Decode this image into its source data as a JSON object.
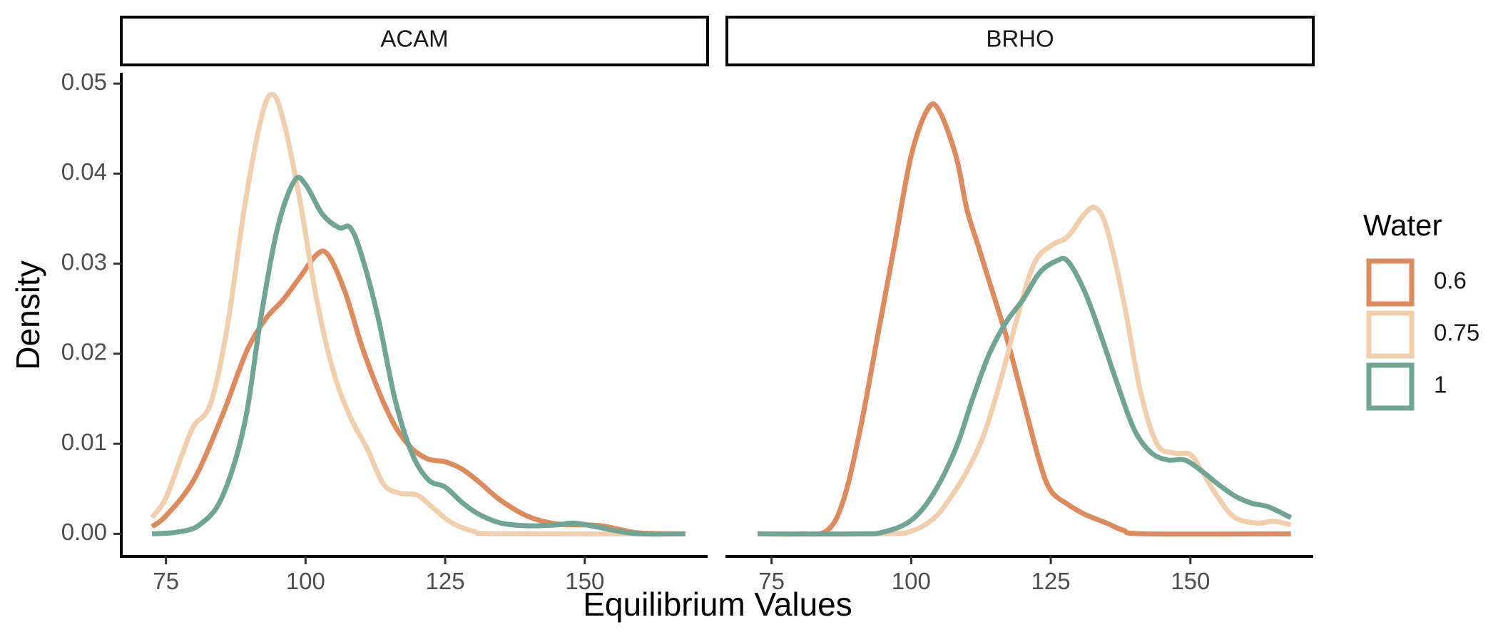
{
  "chart_data": {
    "type": "line",
    "chart_kind": "density",
    "xlabel": "Equilibrium Values",
    "ylabel": "Density",
    "xlim": [
      67,
      172
    ],
    "ylim": [
      -0.0025,
      0.0512
    ],
    "x_ticks": [
      75,
      100,
      125,
      150
    ],
    "y_ticks": [
      0.0,
      0.01,
      0.02,
      0.03,
      0.04,
      0.05
    ],
    "y_tick_labels": [
      "0.00",
      "0.01",
      "0.02",
      "0.03",
      "0.04",
      "0.05"
    ],
    "grid": false,
    "legend": {
      "title": "Water",
      "position": "right",
      "items": [
        {
          "label": "0.6",
          "color": "#E0895A"
        },
        {
          "label": "0.75",
          "color": "#F2CFAA"
        },
        {
          "label": "1",
          "color": "#6FA595"
        }
      ]
    },
    "panels": [
      {
        "strip": "ACAM",
        "series": [
          {
            "name": "0.6",
            "color": "#E0895A",
            "points": [
              [
                72.5,
                0.0008
              ],
              [
                75,
                0.002
              ],
              [
                80,
                0.006
              ],
              [
                85,
                0.013
              ],
              [
                88,
                0.018
              ],
              [
                90,
                0.021
              ],
              [
                93,
                0.024
              ],
              [
                96,
                0.026
              ],
              [
                99,
                0.0285
              ],
              [
                102,
                0.031
              ],
              [
                104,
                0.031
              ],
              [
                107,
                0.027
              ],
              [
                110,
                0.021
              ],
              [
                113,
                0.016
              ],
              [
                116,
                0.012
              ],
              [
                119,
                0.0095
              ],
              [
                122,
                0.0083
              ],
              [
                125,
                0.008
              ],
              [
                128,
                0.0072
              ],
              [
                131,
                0.0058
              ],
              [
                135,
                0.0037
              ],
              [
                140,
                0.0019
              ],
              [
                145,
                0.0011
              ],
              [
                150,
                0.001
              ],
              [
                153,
                0.0009
              ],
              [
                157,
                0.0004
              ],
              [
                160,
                0.0001
              ],
              [
                168,
                0.0
              ]
            ]
          },
          {
            "name": "0.75",
            "color": "#F2CFAA",
            "points": [
              [
                72.5,
                0.0018
              ],
              [
                75,
                0.004
              ],
              [
                78,
                0.009
              ],
              [
                80,
                0.012
              ],
              [
                83,
                0.0145
              ],
              [
                86,
                0.023
              ],
              [
                89,
                0.036
              ],
              [
                92,
                0.046
              ],
              [
                94,
                0.0488
              ],
              [
                96,
                0.046
              ],
              [
                99,
                0.037
              ],
              [
                102,
                0.026
              ],
              [
                105,
                0.018
              ],
              [
                108,
                0.013
              ],
              [
                111,
                0.0095
              ],
              [
                114,
                0.0055
              ],
              [
                117,
                0.0045
              ],
              [
                120,
                0.0043
              ],
              [
                123,
                0.0028
              ],
              [
                126,
                0.0013
              ],
              [
                130,
                0.0003
              ],
              [
                135,
                0.0
              ],
              [
                168,
                0.0
              ]
            ]
          },
          {
            "name": "1",
            "color": "#6FA595",
            "points": [
              [
                72.5,
                0.0
              ],
              [
                77,
                0.0002
              ],
              [
                81,
                0.001
              ],
              [
                85,
                0.004
              ],
              [
                89,
                0.012
              ],
              [
                92,
                0.024
              ],
              [
                95,
                0.034
              ],
              [
                98,
                0.0392
              ],
              [
                100,
                0.0388
              ],
              [
                103,
                0.0355
              ],
              [
                106,
                0.034
              ],
              [
                108,
                0.034
              ],
              [
                110,
                0.031
              ],
              [
                113,
                0.024
              ],
              [
                116,
                0.015
              ],
              [
                119,
                0.009
              ],
              [
                122,
                0.006
              ],
              [
                125,
                0.0052
              ],
              [
                128,
                0.0035
              ],
              [
                131,
                0.0022
              ],
              [
                135,
                0.0012
              ],
              [
                140,
                0.0009
              ],
              [
                145,
                0.001
              ],
              [
                148,
                0.0012
              ],
              [
                152,
                0.0008
              ],
              [
                156,
                0.0003
              ],
              [
                160,
                0.0
              ],
              [
                168,
                0.0
              ]
            ]
          }
        ]
      },
      {
        "strip": "BRHO",
        "series": [
          {
            "name": "0.6",
            "color": "#E0895A",
            "points": [
              [
                72.5,
                0.0
              ],
              [
                80,
                0.0
              ],
              [
                85,
                0.0004
              ],
              [
                88,
                0.004
              ],
              [
                91,
                0.012
              ],
              [
                94,
                0.022
              ],
              [
                97,
                0.032
              ],
              [
                100,
                0.042
              ],
              [
                103,
                0.0472
              ],
              [
                105,
                0.047
              ],
              [
                108,
                0.042
              ],
              [
                110,
                0.036
              ],
              [
                112,
                0.032
              ],
              [
                114,
                0.028
              ],
              [
                117,
                0.022
              ],
              [
                120,
                0.015
              ],
              [
                123,
                0.008
              ],
              [
                125,
                0.0048
              ],
              [
                128,
                0.0033
              ],
              [
                131,
                0.0022
              ],
              [
                135,
                0.0012
              ],
              [
                138,
                0.0004
              ],
              [
                142,
                0.0
              ],
              [
                168,
                0.0
              ]
            ]
          },
          {
            "name": "0.75",
            "color": "#F2CFAA",
            "points": [
              [
                72.5,
                0.0
              ],
              [
                95,
                0.0
              ],
              [
                100,
                0.0003
              ],
              [
                104,
                0.0017
              ],
              [
                107,
                0.004
              ],
              [
                110,
                0.007
              ],
              [
                113,
                0.011
              ],
              [
                116,
                0.017
              ],
              [
                119,
                0.024
              ],
              [
                122,
                0.03
              ],
              [
                125,
                0.032
              ],
              [
                128,
                0.033
              ],
              [
                131,
                0.0355
              ],
              [
                133,
                0.0362
              ],
              [
                135,
                0.034
              ],
              [
                138,
                0.026
              ],
              [
                141,
                0.016
              ],
              [
                144,
                0.01
              ],
              [
                147,
                0.009
              ],
              [
                150,
                0.0088
              ],
              [
                152,
                0.007
              ],
              [
                155,
                0.004
              ],
              [
                158,
                0.0018
              ],
              [
                162,
                0.0012
              ],
              [
                165,
                0.0014
              ],
              [
                168,
                0.001
              ]
            ]
          },
          {
            "name": "1",
            "color": "#6FA595",
            "points": [
              [
                72.5,
                0.0
              ],
              [
                90,
                0.0
              ],
              [
                95,
                0.0002
              ],
              [
                100,
                0.0015
              ],
              [
                104,
                0.0045
              ],
              [
                108,
                0.0095
              ],
              [
                111,
                0.015
              ],
              [
                114,
                0.02
              ],
              [
                117,
                0.0235
              ],
              [
                120,
                0.026
              ],
              [
                123,
                0.029
              ],
              [
                126,
                0.0303
              ],
              [
                128,
                0.0303
              ],
              [
                131,
                0.027
              ],
              [
                134,
                0.022
              ],
              [
                137,
                0.0165
              ],
              [
                140,
                0.0115
              ],
              [
                143,
                0.009
              ],
              [
                146,
                0.0082
              ],
              [
                149,
                0.0082
              ],
              [
                152,
                0.007
              ],
              [
                155,
                0.0055
              ],
              [
                158,
                0.0042
              ],
              [
                161,
                0.0034
              ],
              [
                164,
                0.003
              ],
              [
                168,
                0.0018
              ]
            ]
          }
        ]
      }
    ]
  }
}
